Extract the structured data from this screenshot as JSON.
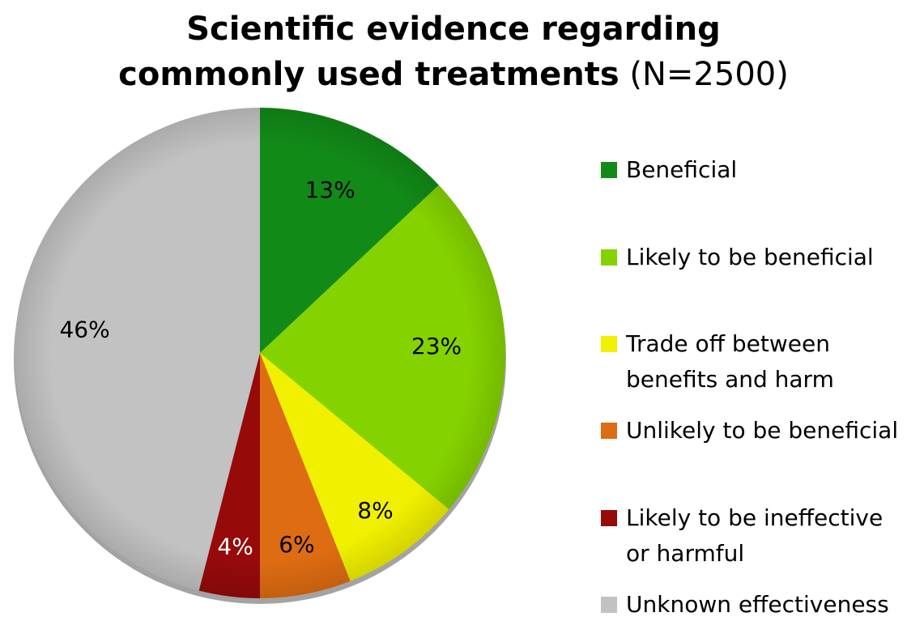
{
  "chart_data": {
    "type": "pie",
    "title": [
      "Scientific evidence regarding",
      "commonly used treatments"
    ],
    "title_note": "(N=2500)",
    "categories": [
      "Beneficial",
      "Likely to be beneficial",
      "Trade off between benefits and harm",
      "Unlikely to be beneficial",
      "Likely to be ineffective or harmful",
      "Unknown effectiveness"
    ],
    "values": [
      13,
      23,
      8,
      6,
      4,
      46
    ],
    "value_labels": [
      "13%",
      "23%",
      "8%",
      "6%",
      "4%",
      "46%"
    ],
    "colors": [
      "#128a18",
      "#84d300",
      "#f0f000",
      "#de6c12",
      "#960a0a",
      "#c2c2c2"
    ],
    "label_colors": [
      "#000000",
      "#000000",
      "#000000",
      "#000000",
      "#ffffff",
      "#000000"
    ],
    "legend": "right"
  }
}
